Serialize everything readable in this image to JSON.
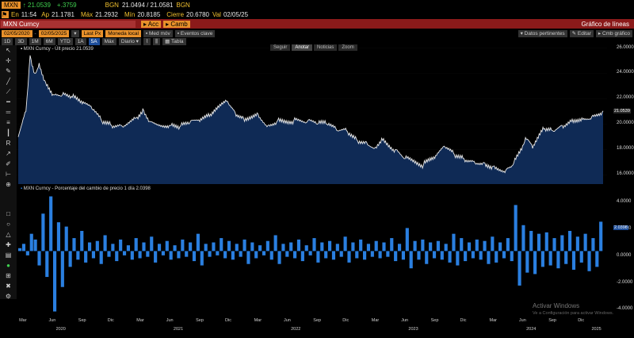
{
  "header": {
    "ticker": "MXN",
    "last": "↑ 21.0539",
    "change": "+.3759",
    "bgn_label": "BGN",
    "bgn_value": "21.0494 / 21.0581",
    "bgn_tag": "BGN",
    "en_label": "En",
    "en_value": "11:54",
    "ap_label": "Ap",
    "ap_value": "21.1781",
    "max_label": "Máx",
    "max_value": "21.2932",
    "min_label": "Mín",
    "min_value": "20.8185",
    "cierre_label": "Cierre",
    "cierre_value": "20.6780",
    "val_label": "Val",
    "val_value": "02/05/25",
    "security": "MXN Curncy",
    "accion1": "Acc",
    "accion2": "Camb",
    "chart_title": "Gráfico de líneas"
  },
  "toolbar1": {
    "date_from": "02/05/2020",
    "date_to": "02/05/2025",
    "last_px": "Last Px",
    "moneda": "Moneda local",
    "med_mov": "Med móv",
    "eventos": "Eventos clave",
    "datos": "Datos pertinentes",
    "editar": "Editar",
    "cmb": "Cmb gráfico"
  },
  "toolbar2": {
    "periods": [
      "1D",
      "3D",
      "1M",
      "6M",
      "YTD",
      "1A",
      "5A",
      "Máx"
    ],
    "active_period": "5A",
    "freq": "Diario",
    "tabla": "Tabla"
  },
  "panel1": {
    "label": "MXN Curncy - Últ precio 21.0539",
    "tabs": [
      "Seguir",
      "Anotar",
      "Noticias",
      "Zoom"
    ],
    "active_tab": "Anotar",
    "last_marker": "21.0539",
    "yticks": [
      "26.0000",
      "24.0000",
      "22.0000",
      "20.0000",
      "18.0000",
      "16.0000"
    ]
  },
  "panel2": {
    "label": "MXN Curncy - Porcentaje del cambio de precio 1 día 2.0398",
    "last_marker": "2.0398",
    "yticks": [
      "4.0000",
      "2.0000",
      "0.0000",
      "-2.0000",
      "-4.0000"
    ]
  },
  "xaxis": {
    "months": [
      "Mar",
      "Jun",
      "Sep",
      "Dic",
      "Mar",
      "Jun",
      "Sep",
      "Dic",
      "Mar",
      "Jun",
      "Sep",
      "Dic",
      "Mar",
      "Jun",
      "Sep",
      "Dic",
      "Mar",
      "Jun",
      "Sep",
      "Dic"
    ],
    "years": [
      "2020",
      "2021",
      "2022",
      "2023",
      "2024",
      "2025"
    ]
  },
  "watermark": {
    "title": "Activar Windows",
    "sub": "Ve a Configuración para activar Windows."
  },
  "colors": {
    "accent": "#f2c12e",
    "title_bar": "#8b1a1a",
    "area_fill": "#0f2a55",
    "price_line": "#e8e8e8",
    "bar": "#2a7fe0",
    "last_marker": "#1e4e9a"
  },
  "chart_data": [
    {
      "type": "area",
      "series": [
        {
          "name": "MXN Curncy - Últ precio",
          "color": "#e8e8e8"
        }
      ],
      "x": [
        "2020-02-15",
        "2020-03-10",
        "2020-03-23",
        "2020-04-06",
        "2020-04-20",
        "2020-05-10",
        "2020-06-05",
        "2020-07-01",
        "2020-08-01",
        "2020-09-01",
        "2020-10-01",
        "2020-11-01",
        "2020-12-01",
        "2021-01-01",
        "2021-02-15",
        "2021-03-08",
        "2021-04-01",
        "2021-06-01",
        "2021-07-01",
        "2021-08-01",
        "2021-09-01",
        "2021-10-01",
        "2021-11-26",
        "2021-12-20",
        "2022-01-15",
        "2022-03-01",
        "2022-04-01",
        "2022-05-01",
        "2022-06-20",
        "2022-08-01",
        "2022-09-01",
        "2022-10-01",
        "2022-11-01",
        "2022-12-01",
        "2023-01-01",
        "2023-02-01",
        "2023-03-01",
        "2023-03-20",
        "2023-05-01",
        "2023-06-01",
        "2023-07-28",
        "2023-09-01",
        "2023-10-03",
        "2023-11-01",
        "2023-12-01",
        "2024-01-01",
        "2024-02-01",
        "2024-03-01",
        "2024-04-09",
        "2024-05-01",
        "2024-06-03",
        "2024-06-12",
        "2024-07-01",
        "2024-08-05",
        "2024-09-01",
        "2024-10-01",
        "2024-11-01",
        "2024-12-01",
        "2025-01-01",
        "2025-02-05"
      ],
      "y": [
        19.0,
        21.0,
        25.4,
        24.0,
        24.8,
        23.3,
        22.3,
        22.3,
        22.1,
        21.6,
        21.2,
        20.2,
        19.9,
        19.9,
        20.5,
        21.2,
        20.2,
        19.9,
        19.8,
        20.1,
        20.2,
        20.6,
        21.8,
        20.9,
        20.5,
        20.8,
        19.9,
        20.3,
        20.3,
        20.2,
        20.0,
        20.0,
        19.5,
        19.5,
        18.8,
        18.6,
        18.2,
        18.9,
        18.0,
        17.3,
        16.8,
        17.3,
        18.2,
        17.6,
        17.3,
        17.1,
        17.0,
        16.7,
        16.4,
        16.8,
        18.4,
        18.8,
        18.1,
        19.6,
        19.5,
        19.9,
        20.4,
        20.5,
        20.6,
        21.05
      ],
      "xlabel": "",
      "ylabel": "",
      "ylim": [
        15.3,
        26.2
      ],
      "grid": false
    },
    {
      "type": "bar",
      "series": [
        {
          "name": "MXN Curncy - Porcentaje del cambio de precio 1 día",
          "color": "#2a7fe0"
        }
      ],
      "x_range": [
        "2020-02-15",
        "2025-02-05"
      ],
      "values": [
        0.2,
        0.5,
        -0.3,
        1.2,
        0.8,
        -1.0,
        2.6,
        -1.8,
        3.8,
        -4.2,
        2.0,
        -2.5,
        1.7,
        -1.1,
        0.9,
        -0.6,
        1.4,
        -0.8,
        0.6,
        -0.5,
        0.7,
        -0.9,
        1.1,
        -0.4,
        0.5,
        -0.7,
        0.8,
        -0.3,
        0.4,
        -0.6,
        0.9,
        -0.5,
        0.6,
        -0.4,
        1.0,
        -0.8,
        0.5,
        -0.3,
        0.7,
        -0.6,
        0.4,
        -0.5,
        0.8,
        -0.4,
        0.6,
        -0.7,
        1.2,
        -1.0,
        0.5,
        -0.4,
        0.6,
        -0.3,
        0.9,
        -0.5,
        0.7,
        -0.6,
        0.5,
        -0.4,
        0.8,
        -0.9,
        0.6,
        -0.5,
        0.4,
        -0.3,
        0.7,
        -0.6,
        1.1,
        -0.9,
        0.5,
        -0.4,
        0.6,
        -0.5,
        0.8,
        -0.7,
        0.4,
        -0.3,
        0.9,
        -0.8,
        0.6,
        -0.5,
        0.7,
        -0.6,
        0.5,
        -0.4,
        1.0,
        -0.8,
        0.6,
        -0.5,
        0.8,
        -0.6,
        0.5,
        -0.4,
        0.7,
        -0.5,
        0.6,
        -0.4,
        0.9,
        -0.7,
        0.5,
        -0.6,
        1.6,
        -1.2,
        0.7,
        -0.6,
        0.8,
        -0.9,
        0.6,
        -0.5,
        0.7,
        -0.6,
        0.5,
        -0.8,
        1.2,
        -1.0,
        0.9,
        -0.7,
        0.6,
        -0.5,
        0.8,
        -0.6,
        0.7,
        -0.9,
        1.0,
        -0.8,
        0.6,
        -0.5,
        0.9,
        -0.7,
        3.2,
        -2.4,
        1.8,
        -1.5,
        1.4,
        -1.6,
        1.2,
        -1.1,
        1.3,
        -1.0,
        0.9,
        -1.2,
        1.1,
        -0.9,
        1.4,
        -1.3,
        1.0,
        -0.8,
        1.2,
        -1.4,
        0.9,
        -1.1,
        2.04
      ],
      "ylim": [
        -4.5,
        4.6
      ],
      "grid": false
    }
  ]
}
